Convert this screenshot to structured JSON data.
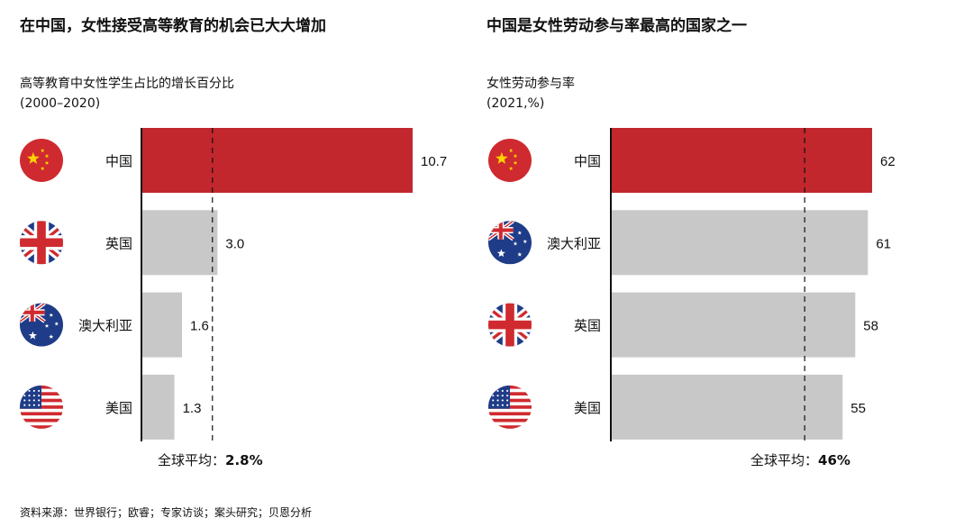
{
  "colors": {
    "highlight": "#c1272d",
    "bar": "#c8c8c8",
    "axis": "#111111"
  },
  "footnote": "资料来源：世界银行；欧睿；专家访谈；案头研究；贝恩分析",
  "chart_data": [
    {
      "type": "bar",
      "orientation": "horizontal",
      "title": "在中国，女性接受高等教育的机会已大大增加",
      "subtitle_line1": "高等教育中女性学生占比的增长百分比",
      "subtitle_line2": "(2000–2020)",
      "categories": [
        "中国",
        "英国",
        "澳大利亚",
        "美国"
      ],
      "flags": [
        "china-flag-icon",
        "uk-flag-icon",
        "australia-flag-icon",
        "usa-flag-icon"
      ],
      "values": [
        10.7,
        3.0,
        1.6,
        1.3
      ],
      "value_labels": [
        "10.7",
        "3.0",
        "1.6",
        "1.3"
      ],
      "xlim": [
        0,
        10.7
      ],
      "highlight_index": 0,
      "reference_line": {
        "value": 2.8,
        "label": "全球平均：",
        "value_label": "2.8%"
      }
    },
    {
      "type": "bar",
      "orientation": "horizontal",
      "title": "中国是女性劳动参与率最高的国家之一",
      "subtitle_line1": "女性劳动参与率",
      "subtitle_line2": "(2021,%)",
      "categories": [
        "中国",
        "澳大利亚",
        "英国",
        "美国"
      ],
      "flags": [
        "china-flag-icon",
        "australia-flag-icon",
        "uk-flag-icon",
        "usa-flag-icon"
      ],
      "values": [
        62,
        61,
        58,
        55
      ],
      "value_labels": [
        "62",
        "61",
        "58",
        "55"
      ],
      "xlim": [
        0,
        62
      ],
      "highlight_index": 0,
      "reference_line": {
        "value": 46,
        "label": "全球平均：",
        "value_label": "46%"
      }
    }
  ]
}
